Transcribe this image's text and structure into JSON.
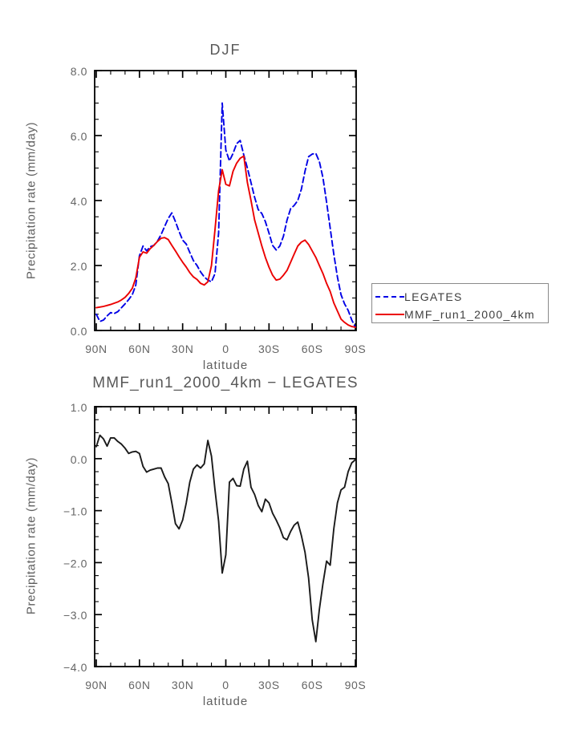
{
  "page": {
    "background": "#ffffff"
  },
  "legend": {
    "border_color": "#8a8a8a",
    "entries": [
      {
        "label": "LEGATES",
        "color": "#0000e6",
        "style": "dashed"
      },
      {
        "label": "MMF_run1_2000_4km",
        "color": "#eb0000",
        "style": "solid"
      }
    ]
  },
  "chart_data": [
    {
      "id": "top",
      "type": "line",
      "title": "DJF",
      "xlabel": "latitude",
      "ylabel": "Precipitation rate (mm/day)",
      "xlim": [
        90,
        -90
      ],
      "ylim": [
        0,
        8
      ],
      "grid": false,
      "x_tick_lats": [
        90,
        60,
        30,
        0,
        -30,
        -60,
        -90
      ],
      "x_tick_labels": [
        "90N",
        "60N",
        "30N",
        "0",
        "30S",
        "60S",
        "90S"
      ],
      "x_minor_step": 10,
      "y_tick_values": [
        8,
        6,
        4,
        2,
        0
      ],
      "y_tick_labels": [
        "8.0",
        "6.0",
        "4.0",
        "2.0",
        "0.0"
      ],
      "y_minor_step": 0.5,
      "x": [
        90,
        87.5,
        85,
        82.5,
        80,
        77.5,
        75,
        72.5,
        70,
        67.5,
        65,
        62.5,
        60,
        57.5,
        55,
        52.5,
        50,
        47.5,
        45,
        42.5,
        40,
        37.5,
        35,
        32.5,
        30,
        27.5,
        25,
        22.5,
        20,
        17.5,
        15,
        12.5,
        10,
        7.5,
        5,
        2.5,
        0,
        -2.5,
        -5,
        -7.5,
        -10,
        -12.5,
        -15,
        -17.5,
        -20,
        -22.5,
        -25,
        -27.5,
        -30,
        -32.5,
        -35,
        -37.5,
        -40,
        -42.5,
        -45,
        -47.5,
        -50,
        -52.5,
        -55,
        -57.5,
        -60,
        -62.5,
        -65,
        -67.5,
        -70,
        -72.5,
        -75,
        -77.5,
        -80,
        -82.5,
        -85,
        -87.5,
        -90
      ],
      "series": [
        {
          "name": "LEGATES",
          "color": "#0000e6",
          "style": "dashed",
          "values": [
            0.5,
            0.28,
            0.32,
            0.45,
            0.55,
            0.52,
            0.58,
            0.7,
            0.82,
            0.95,
            1.1,
            1.4,
            2.3,
            2.6,
            2.45,
            2.58,
            2.62,
            2.75,
            2.95,
            3.2,
            3.45,
            3.62,
            3.35,
            3.05,
            2.78,
            2.66,
            2.4,
            2.15,
            2.0,
            1.8,
            1.65,
            1.55,
            1.5,
            1.75,
            3.0,
            7.0,
            5.55,
            5.22,
            5.45,
            5.75,
            5.85,
            5.4,
            5.0,
            4.55,
            4.1,
            3.72,
            3.6,
            3.35,
            3.0,
            2.62,
            2.48,
            2.6,
            2.9,
            3.4,
            3.75,
            3.85,
            4.0,
            4.35,
            4.9,
            5.35,
            5.43,
            5.45,
            5.2,
            4.7,
            3.95,
            3.15,
            2.35,
            1.65,
            1.1,
            0.82,
            0.62,
            0.32,
            0.1
          ]
        },
        {
          "name": "MMF_run1_2000_4km",
          "color": "#eb0000",
          "style": "solid",
          "values": [
            0.7,
            0.72,
            0.74,
            0.77,
            0.8,
            0.84,
            0.88,
            0.94,
            1.02,
            1.14,
            1.3,
            1.62,
            2.25,
            2.42,
            2.38,
            2.52,
            2.62,
            2.74,
            2.84,
            2.86,
            2.8,
            2.62,
            2.45,
            2.27,
            2.1,
            1.95,
            1.78,
            1.65,
            1.57,
            1.45,
            1.4,
            1.5,
            2.0,
            3.1,
            4.3,
            4.95,
            4.5,
            4.45,
            4.9,
            5.15,
            5.3,
            5.37,
            4.55,
            4.0,
            3.4,
            3.0,
            2.6,
            2.25,
            1.95,
            1.7,
            1.55,
            1.58,
            1.7,
            1.85,
            2.1,
            2.35,
            2.6,
            2.72,
            2.78,
            2.65,
            2.45,
            2.25,
            2.0,
            1.75,
            1.45,
            1.2,
            0.85,
            0.6,
            0.35,
            0.25,
            0.17,
            0.12,
            0.1
          ]
        }
      ]
    },
    {
      "id": "bottom",
      "type": "line",
      "title": "MMF_run1_2000_4km − LEGATES",
      "xlabel": "latitude",
      "ylabel": "Precipitation rate (mm/day)",
      "xlim": [
        90,
        -90
      ],
      "ylim": [
        -4,
        1
      ],
      "grid": false,
      "x_tick_lats": [
        90,
        60,
        30,
        0,
        -30,
        -60,
        -90
      ],
      "x_tick_labels": [
        "90N",
        "60N",
        "30N",
        "0",
        "30S",
        "60S",
        "90S"
      ],
      "x_minor_step": 10,
      "y_tick_values": [
        1,
        0,
        -1,
        -2,
        -3,
        -4
      ],
      "y_tick_labels": [
        "1.0",
        "0.0",
        "−1.0",
        "−2.0",
        "−3.0",
        "−4.0"
      ],
      "y_minor_step": 0.25,
      "x": [
        90,
        87.5,
        85,
        82.5,
        80,
        77.5,
        75,
        72.5,
        70,
        67.5,
        65,
        62.5,
        60,
        57.5,
        55,
        52.5,
        50,
        47.5,
        45,
        42.5,
        40,
        37.5,
        35,
        32.5,
        30,
        27.5,
        25,
        22.5,
        20,
        17.5,
        15,
        12.5,
        10,
        7.5,
        5,
        2.5,
        0,
        -2.5,
        -5,
        -7.5,
        -10,
        -12.5,
        -15,
        -17.5,
        -20,
        -22.5,
        -25,
        -27.5,
        -30,
        -32.5,
        -35,
        -37.5,
        -40,
        -42.5,
        -45,
        -47.5,
        -50,
        -52.5,
        -55,
        -57.5,
        -60,
        -62.5,
        -65,
        -67.5,
        -70,
        -72.5,
        -75,
        -77.5,
        -80,
        -82.5,
        -85,
        -87.5,
        -90
      ],
      "series": [
        {
          "name": "MMF_run1_2000_4km − LEGATES",
          "color": "#1a1a1a",
          "style": "solid",
          "values": [
            0.23,
            0.45,
            0.38,
            0.24,
            0.4,
            0.4,
            0.33,
            0.28,
            0.2,
            0.1,
            0.13,
            0.14,
            0.1,
            -0.15,
            -0.26,
            -0.22,
            -0.2,
            -0.18,
            -0.18,
            -0.35,
            -0.48,
            -0.85,
            -1.25,
            -1.35,
            -1.18,
            -0.85,
            -0.45,
            -0.2,
            -0.12,
            -0.18,
            -0.1,
            0.35,
            0.05,
            -0.6,
            -1.2,
            -2.2,
            -1.85,
            -0.45,
            -0.38,
            -0.52,
            -0.53,
            -0.2,
            -0.05,
            -0.55,
            -0.69,
            -0.9,
            -1.02,
            -0.78,
            -0.85,
            -1.05,
            -1.18,
            -1.33,
            -1.52,
            -1.56,
            -1.4,
            -1.28,
            -1.22,
            -1.48,
            -1.8,
            -2.3,
            -3.1,
            -3.52,
            -2.9,
            -2.4,
            -1.97,
            -2.05,
            -1.35,
            -0.85,
            -0.6,
            -0.55,
            -0.25,
            -0.08,
            -0.02
          ]
        }
      ]
    }
  ]
}
